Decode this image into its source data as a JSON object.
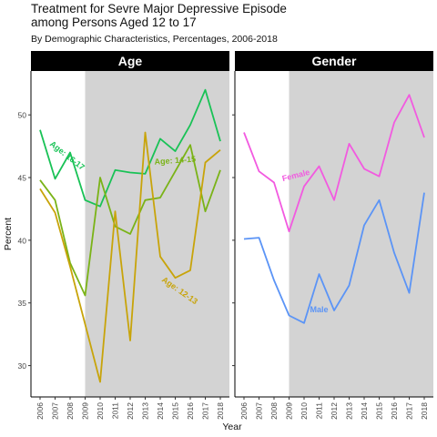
{
  "chart_data": {
    "type": "line",
    "title_line1": "Treatment for Sevre Major Depressive Episode",
    "title_line2": "among Persons Aged 12 to 17",
    "subtitle": "By Demographic Characteristics, Percentages, 2006-2018",
    "xlabel": "Year",
    "ylabel": "Percent",
    "x": [
      2006,
      2007,
      2008,
      2009,
      2010,
      2011,
      2012,
      2013,
      2014,
      2015,
      2016,
      2017,
      2018
    ],
    "ylim": [
      27.5,
      53.5
    ],
    "yticks": [
      30,
      35,
      40,
      45,
      50
    ],
    "shaded_from": 2009,
    "shaded_color": "#d3d3d3",
    "panels": [
      {
        "name": "Age",
        "series": [
          {
            "name": "Age: 16-17",
            "color": "#19c256",
            "values": [
              48.8,
              44.9,
              47.0,
              43.2,
              42.7,
              45.6,
              45.4,
              45.3,
              48.1,
              47.1,
              49.2,
              52.0,
              47.9
            ]
          },
          {
            "name": "Age: 14-15",
            "color": "#7ab317",
            "values": [
              44.8,
              43.2,
              38.2,
              35.6,
              45.0,
              41.1,
              40.5,
              43.2,
              43.4,
              45.5,
              47.6,
              42.3,
              45.6
            ]
          },
          {
            "name": "Age: 12-13",
            "color": "#c8a40a",
            "values": [
              44.1,
              42.2,
              37.9,
              33.3,
              28.7,
              42.3,
              32.0,
              48.6,
              38.7,
              37.0,
              37.6,
              46.2,
              47.2
            ]
          }
        ],
        "labels": [
          {
            "text": "Age: 16-17",
            "series": 0
          },
          {
            "text": "Age: 14-15",
            "series": 1
          },
          {
            "text": "Age: 12-13",
            "series": 2
          }
        ]
      },
      {
        "name": "Gender",
        "series": [
          {
            "name": "Female",
            "color": "#f25ae0",
            "values": [
              48.6,
              45.5,
              44.6,
              40.7,
              44.3,
              45.9,
              43.2,
              47.7,
              45.7,
              45.1,
              49.4,
              51.6,
              48.2
            ]
          },
          {
            "name": "Male",
            "color": "#5b94f6",
            "values": [
              40.1,
              40.2,
              36.8,
              34.0,
              33.4,
              37.3,
              34.4,
              36.4,
              41.2,
              43.2,
              39.0,
              35.8,
              43.8
            ]
          }
        ],
        "labels": [
          {
            "text": "Female",
            "series": 0
          },
          {
            "text": "Male",
            "series": 1
          }
        ]
      }
    ]
  }
}
